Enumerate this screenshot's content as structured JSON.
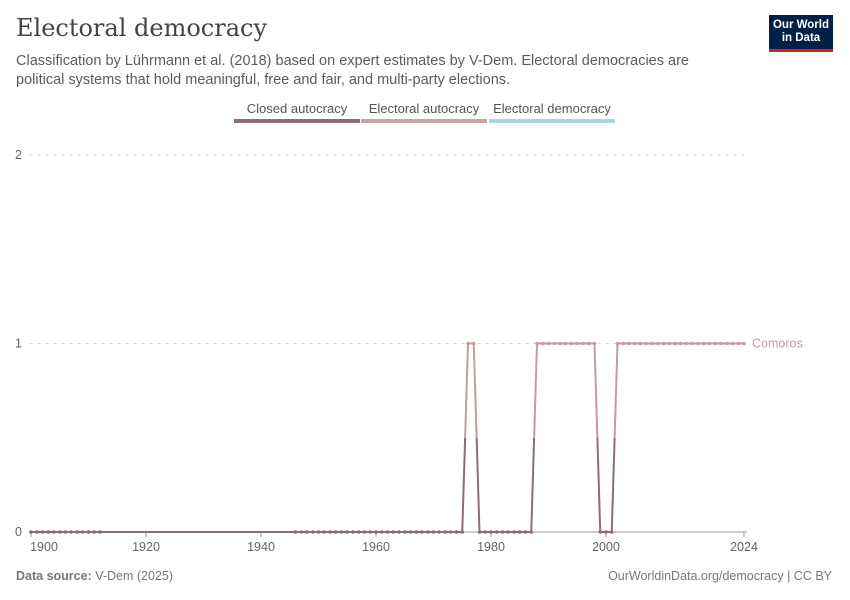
{
  "header": {
    "title": "Electoral democracy",
    "subtitle": "Classification by Lührmann et al. (2018) based on expert estimates by V-Dem. Electoral democracies are political systems that hold meaningful, free and fair, and multi-party elections.",
    "logo": "Our World in Data"
  },
  "footer": {
    "source_label": "Data source:",
    "source": "V-Dem (2025)",
    "link": "OurWorldinData.org/democracy | CC BY"
  },
  "chart_data": {
    "type": "line",
    "title": "Electoral democracy",
    "xlim": [
      1900,
      2024
    ],
    "ylim": [
      0,
      2
    ],
    "xticks": [
      "1900",
      "1920",
      "1940",
      "1960",
      "1980",
      "2000",
      "2024"
    ],
    "yticks": [
      "0",
      "1",
      "2"
    ],
    "legend": [
      {
        "name": "Closed autocracy",
        "color": "#8c6e71"
      },
      {
        "name": "Electoral autocracy",
        "color": "#c9a3a6"
      },
      {
        "name": "Electoral democracy",
        "color": "#a9d6e3"
      }
    ],
    "legend_placement": "top-center",
    "series": [
      {
        "name": "Comoros",
        "color": "#c49b9e",
        "segments": [
          {
            "x": [
              1900,
              1901,
              1902,
              1903,
              1904,
              1905,
              1906,
              1907,
              1908,
              1909,
              1910,
              1911,
              1912
            ],
            "y": [
              0,
              0,
              0,
              0,
              0,
              0,
              0,
              0,
              0,
              0,
              0,
              0,
              0
            ]
          },
          {
            "x": [
              1946,
              1947,
              1948,
              1949,
              1950,
              1951,
              1952,
              1953,
              1954,
              1955,
              1956,
              1957,
              1958,
              1959,
              1960,
              1961,
              1962,
              1963,
              1964,
              1965,
              1966,
              1967,
              1968,
              1969,
              1970,
              1971,
              1972,
              1973,
              1974,
              1975,
              1976,
              1977,
              1978,
              1979,
              1980,
              1981,
              1982,
              1983,
              1984,
              1985,
              1986,
              1987,
              1988,
              1989,
              1990,
              1991,
              1992,
              1993,
              1994,
              1995,
              1996,
              1997,
              1998,
              1999,
              2000,
              2001,
              2002,
              2003,
              2004,
              2005,
              2006,
              2007,
              2008,
              2009,
              2010,
              2011,
              2012,
              2013,
              2014,
              2015,
              2016,
              2017,
              2018,
              2019,
              2020,
              2021,
              2022,
              2023,
              2024
            ],
            "y": [
              0,
              0,
              0,
              0,
              0,
              0,
              0,
              0,
              0,
              0,
              0,
              0,
              0,
              0,
              0,
              0,
              0,
              0,
              0,
              0,
              0,
              0,
              0,
              0,
              0,
              0,
              0,
              0,
              0,
              0,
              1,
              1,
              0,
              0,
              0,
              0,
              0,
              0,
              0,
              0,
              0,
              0,
              1,
              1,
              1,
              1,
              1,
              1,
              1,
              1,
              1,
              1,
              1,
              0,
              0,
              0,
              1,
              1,
              1,
              1,
              1,
              1,
              1,
              1,
              1,
              1,
              1,
              1,
              1,
              1,
              1,
              1,
              1,
              1,
              1,
              1,
              1,
              1,
              1
            ]
          }
        ]
      }
    ]
  }
}
